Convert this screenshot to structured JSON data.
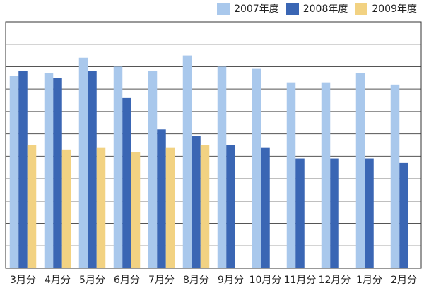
{
  "chart_data": {
    "type": "bar",
    "categories": [
      "3月分",
      "4月分",
      "5月分",
      "6月分",
      "7月分",
      "8月分",
      "9月分",
      "10月分",
      "11月分",
      "12月分",
      "1月分",
      "2月分"
    ],
    "series": [
      {
        "name": "2007年度",
        "color": "#a9c8ec",
        "values": [
          8.6,
          8.7,
          9.4,
          9.0,
          8.8,
          9.5,
          9.0,
          8.9,
          8.3,
          8.3,
          8.7,
          8.2
        ]
      },
      {
        "name": "2008年度",
        "color": "#3a66b4",
        "values": [
          8.8,
          8.5,
          8.8,
          7.6,
          6.2,
          5.9,
          5.5,
          5.4,
          4.9,
          4.9,
          4.9,
          4.7
        ]
      },
      {
        "name": "2009年度",
        "color": "#f2d282",
        "values": [
          5.5,
          5.3,
          5.4,
          5.2,
          5.4,
          5.5,
          null,
          null,
          null,
          null,
          null,
          null
        ]
      }
    ],
    "ylim": [
      0,
      11
    ],
    "grid": true,
    "legend_position": "top-right",
    "show_y_tick_labels": false
  }
}
